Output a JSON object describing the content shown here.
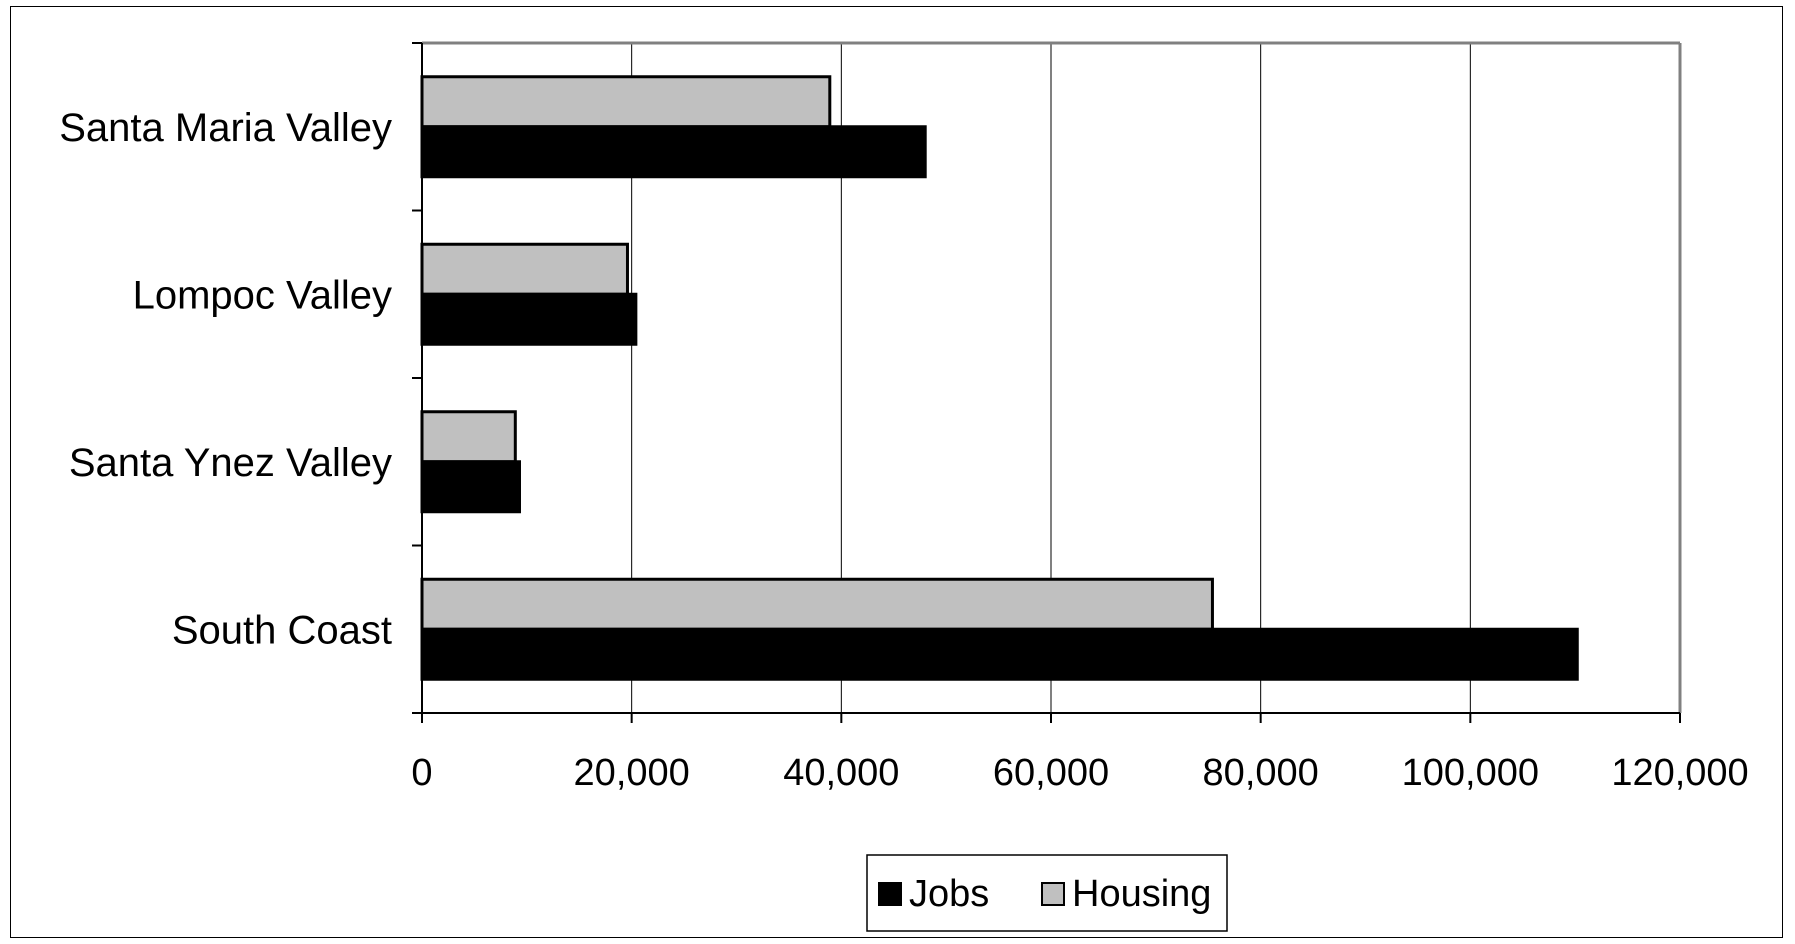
{
  "chart_data": {
    "type": "bar",
    "orientation": "horizontal",
    "categories": [
      "Santa Maria Valley",
      "Lompoc Valley",
      "Santa Ynez Valley",
      "South Coast"
    ],
    "series": [
      {
        "name": "Jobs",
        "color": "#000000",
        "values": [
          48000,
          20400,
          9300,
          110200
        ]
      },
      {
        "name": "Housing",
        "color": "#c0c0c0",
        "values": [
          38900,
          19600,
          8900,
          75400
        ]
      }
    ],
    "xlim": [
      0,
      120000
    ],
    "x_ticks": [
      0,
      20000,
      40000,
      60000,
      80000,
      100000,
      120000
    ],
    "x_tick_labels": [
      "0",
      "20,000",
      "40,000",
      "60,000",
      "80,000",
      "100,000",
      "120,000"
    ],
    "grid": "vertical",
    "legend": "bottom-center",
    "title": "",
    "xlabel": "",
    "ylabel": ""
  }
}
